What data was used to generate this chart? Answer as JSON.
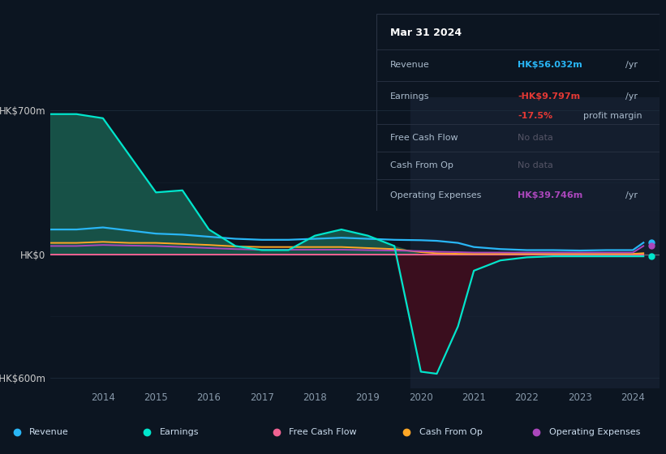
{
  "bg_color": "#0c1521",
  "chart_bg": "#0c1521",
  "grid_color": "#1e2d3d",
  "zero_line_color": "#888899",
  "highlight_color": "#141e2e",
  "years": [
    2013.0,
    2013.5,
    2014.0,
    2014.5,
    2015.0,
    2015.5,
    2016.0,
    2016.5,
    2017.0,
    2017.5,
    2018.0,
    2018.5,
    2019.0,
    2019.5,
    2020.0,
    2020.3,
    2020.7,
    2021.0,
    2021.5,
    2022.0,
    2022.5,
    2023.0,
    2023.5,
    2024.0,
    2024.2
  ],
  "earnings": [
    680,
    680,
    660,
    480,
    300,
    310,
    120,
    40,
    20,
    20,
    90,
    120,
    90,
    40,
    -570,
    -580,
    -350,
    -80,
    -30,
    -15,
    -10,
    -10,
    -10,
    -10,
    -10
  ],
  "revenue": [
    120,
    120,
    130,
    115,
    100,
    95,
    85,
    75,
    70,
    70,
    75,
    80,
    75,
    70,
    68,
    65,
    55,
    35,
    25,
    20,
    20,
    18,
    20,
    20,
    56
  ],
  "free_cash_flow": [
    0,
    0,
    0,
    0,
    0,
    0,
    0,
    0,
    0,
    0,
    0,
    0,
    0,
    0,
    0,
    0,
    0,
    0,
    0,
    0,
    0,
    0,
    0,
    0,
    0
  ],
  "cash_from_op": [
    55,
    55,
    60,
    55,
    55,
    50,
    45,
    38,
    35,
    35,
    35,
    35,
    30,
    25,
    10,
    5,
    2,
    2,
    2,
    2,
    2,
    2,
    2,
    2,
    5
  ],
  "operating_expenses": [
    40,
    40,
    45,
    42,
    40,
    35,
    30,
    25,
    22,
    22,
    22,
    22,
    20,
    18,
    15,
    12,
    10,
    8,
    8,
    8,
    8,
    8,
    8,
    8,
    40
  ],
  "revenue_color": "#29b6f6",
  "earnings_color": "#00e5cc",
  "fcf_color": "#f06292",
  "cashop_color": "#ffa726",
  "opex_color": "#ab47bc",
  "earnings_fill_pos_color": "#1a5c4e",
  "earnings_fill_neg_color": "#3d0e1e",
  "info_box_bg": "#080e18",
  "info_box_border": "#2a3344",
  "legend_bg": "#111a27",
  "legend_border": "#252f3e",
  "revenue_val_color": "#29b6f6",
  "earnings_val_color": "#e53935",
  "margin_color": "#e53935",
  "opex_val_color": "#ab47bc",
  "nodata_color": "#555566"
}
